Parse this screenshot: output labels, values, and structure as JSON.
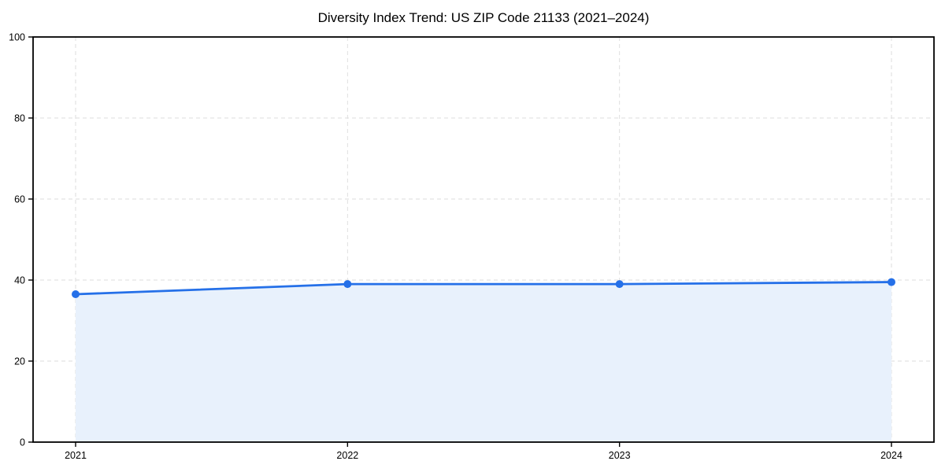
{
  "chart_data": {
    "type": "line",
    "title": "Diversity Index Trend: US ZIP Code 21133 (2021–2024)",
    "categories": [
      "2021",
      "2022",
      "2023",
      "2024"
    ],
    "series": [
      {
        "name": "Diversity Index",
        "values": [
          36.5,
          39,
          39,
          39.5
        ]
      }
    ],
    "xlabel": "",
    "ylabel": "",
    "ylim": [
      0,
      100
    ],
    "yticks": [
      0,
      20,
      40,
      60,
      80,
      100
    ],
    "grid": true,
    "grid_style": "dashed",
    "legend_position": "none",
    "area_fill": true,
    "colors": {
      "line": "#2570e8",
      "marker": "#2570e8",
      "area_fill": "#e8f1fc",
      "grid": "#dedede",
      "axis": "#000000",
      "tick_text": "#000000",
      "background": "#ffffff"
    }
  }
}
